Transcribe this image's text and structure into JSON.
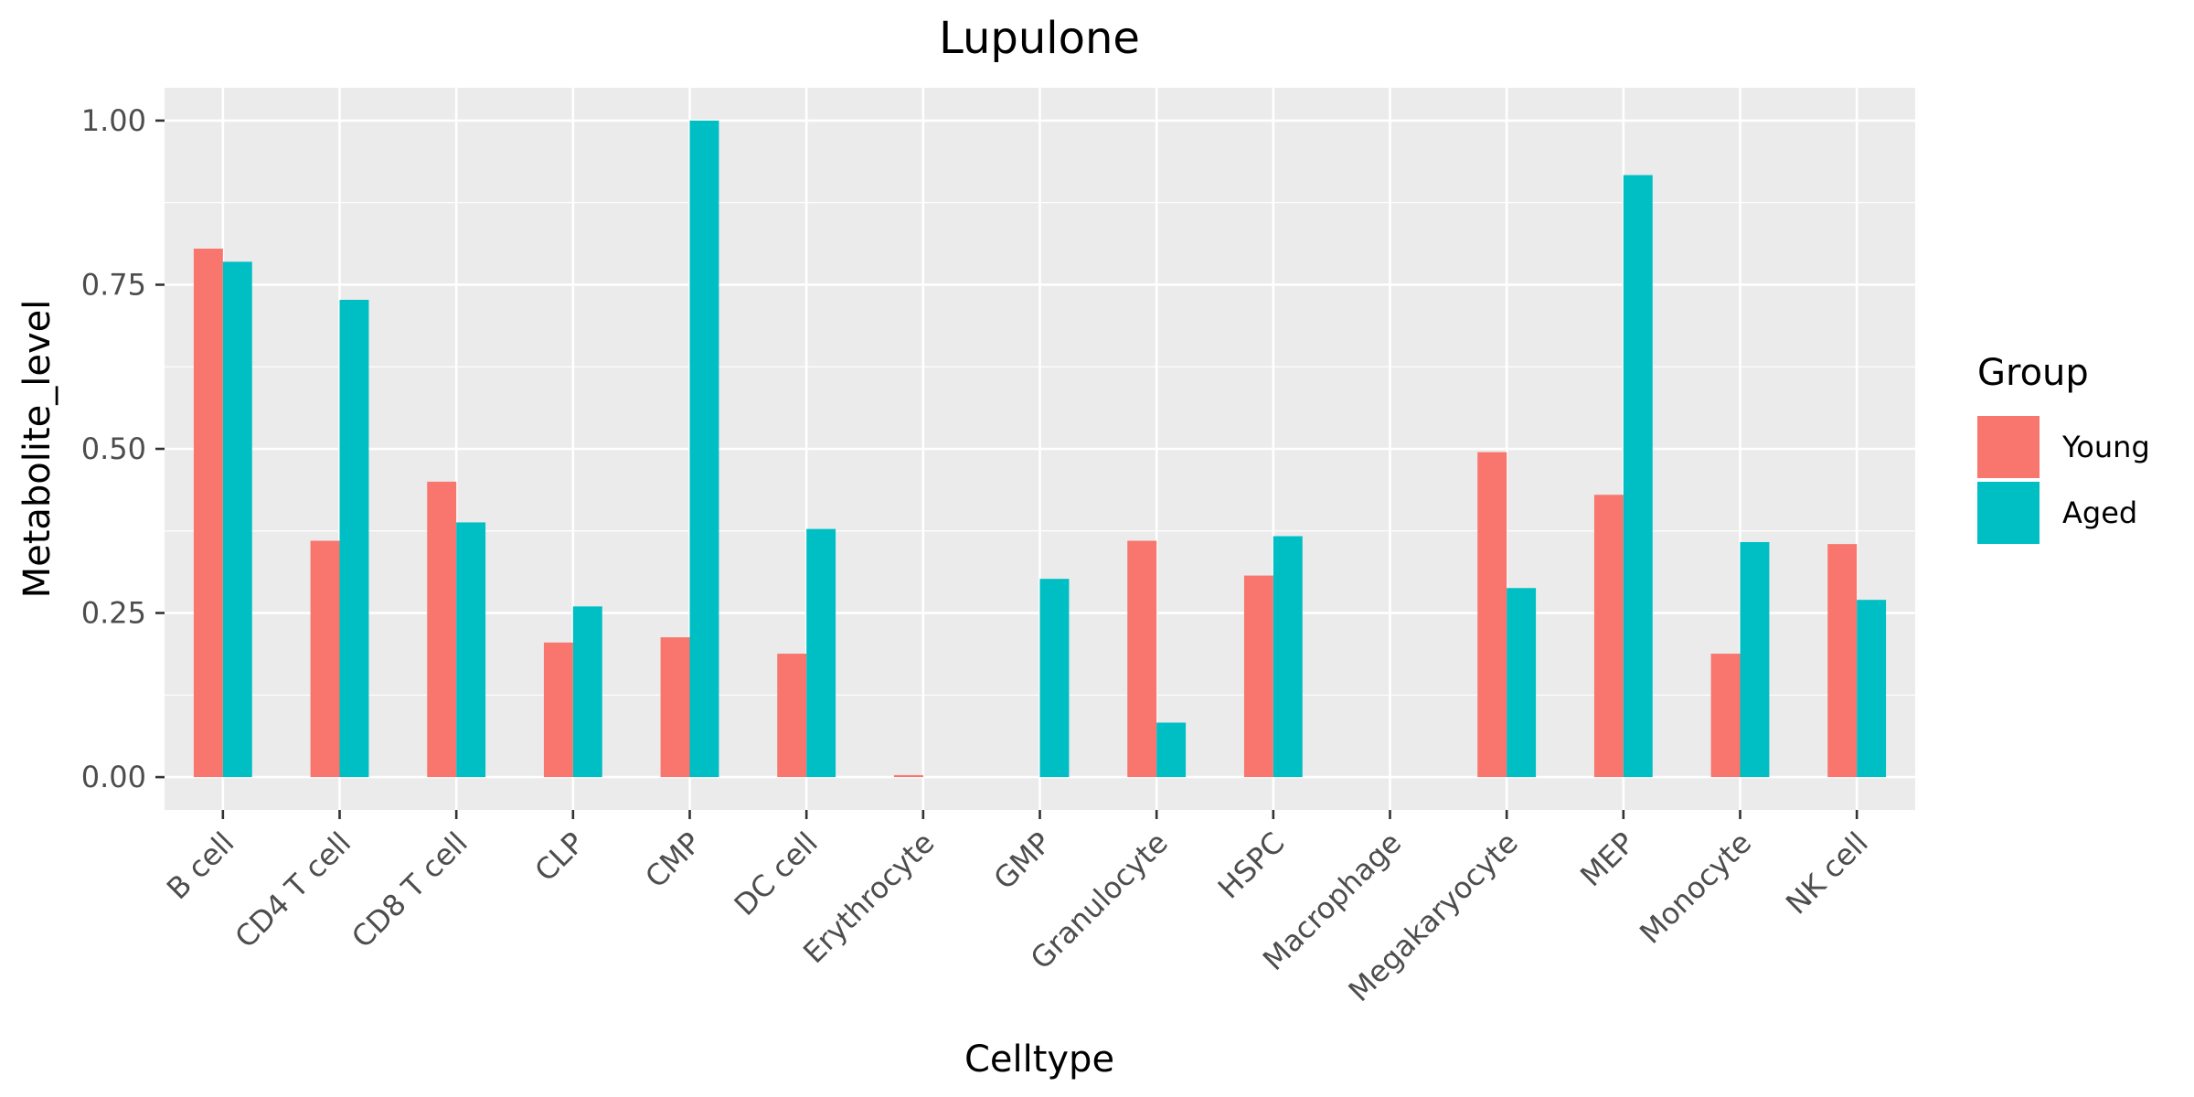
{
  "chart_data": {
    "type": "bar",
    "title": "Lupulone",
    "xlabel": "Celltype",
    "ylabel": "Metabolite_level",
    "ylim": [
      -0.05,
      1.05
    ],
    "yticks": [
      "0.00",
      "0.25",
      "0.50",
      "0.75",
      "1.00"
    ],
    "ytick_values": [
      0,
      0.25,
      0.5,
      0.75,
      1.0
    ],
    "grid": true,
    "legend_position": "right",
    "legend_title": "Group",
    "categories": [
      "B cell",
      "CD4 T cell",
      "CD8 T cell",
      "CLP",
      "CMP",
      "DC cell",
      "Erythrocyte",
      "GMP",
      "Granulocyte",
      "HSPC",
      "Macrophage",
      "Megakaryocyte",
      "MEP",
      "Monocyte",
      "NK cell"
    ],
    "series": [
      {
        "name": "Young",
        "color": "#F8766D",
        "values": [
          0.805,
          0.36,
          0.45,
          0.205,
          0.213,
          0.188,
          0.003,
          0,
          0.36,
          0.307,
          0,
          0.495,
          0.43,
          0.188,
          0.355
        ]
      },
      {
        "name": "Aged",
        "color": "#00BFC4",
        "values": [
          0.785,
          0.727,
          0.388,
          0.26,
          1.0,
          0.378,
          0,
          0.302,
          0.083,
          0.367,
          0,
          0.288,
          0.917,
          0.358,
          0.27
        ]
      }
    ]
  }
}
